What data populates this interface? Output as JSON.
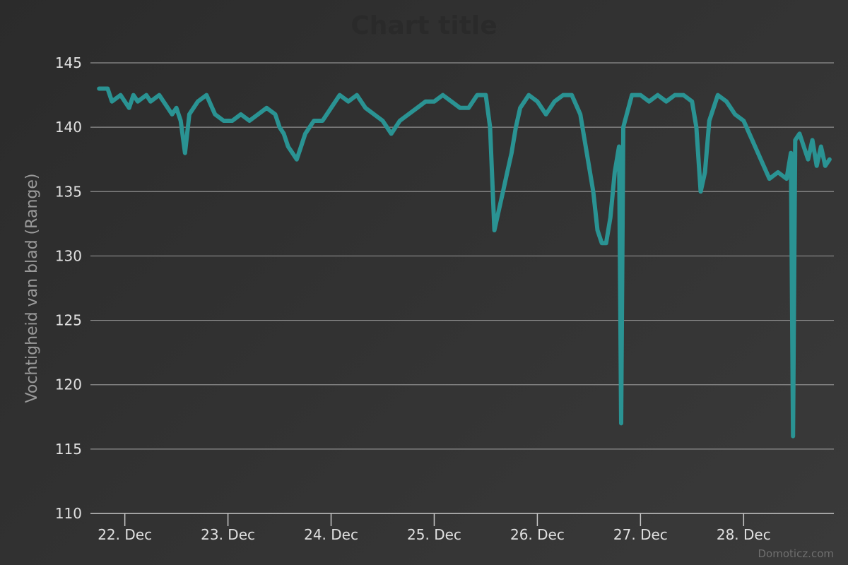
{
  "chart_data": {
    "type": "line",
    "title": "Chart title",
    "ylabel": "Vochtigheid van blad (Range)",
    "xlabel": "",
    "ylim": [
      110,
      145
    ],
    "yticks": [
      110,
      115,
      120,
      125,
      130,
      135,
      140,
      145
    ],
    "xlim": [
      "2016-12-21T16:00",
      "2016-12-28T21:00"
    ],
    "xticks": [
      {
        "date": "2016-12-22",
        "label": "22. Dec"
      },
      {
        "date": "2016-12-23",
        "label": "23. Dec"
      },
      {
        "date": "2016-12-24",
        "label": "24. Dec"
      },
      {
        "date": "2016-12-25",
        "label": "25. Dec"
      },
      {
        "date": "2016-12-26",
        "label": "26. Dec"
      },
      {
        "date": "2016-12-27",
        "label": "27. Dec"
      },
      {
        "date": "2016-12-28",
        "label": "28. Dec"
      }
    ],
    "grid": true,
    "series": [
      {
        "color": "#2a9393",
        "points": [
          [
            "2016-12-21T18:00",
            143
          ],
          [
            "2016-12-21T20:00",
            143
          ],
          [
            "2016-12-21T21:00",
            142
          ],
          [
            "2016-12-21T23:00",
            142.5
          ],
          [
            "2016-12-22T00:00",
            142
          ],
          [
            "2016-12-22T01:00",
            141.5
          ],
          [
            "2016-12-22T02:00",
            142.5
          ],
          [
            "2016-12-22T03:00",
            142
          ],
          [
            "2016-12-22T05:00",
            142.5
          ],
          [
            "2016-12-22T06:00",
            142
          ],
          [
            "2016-12-22T08:00",
            142.5
          ],
          [
            "2016-12-22T10:00",
            141.5
          ],
          [
            "2016-12-22T11:00",
            141
          ],
          [
            "2016-12-22T12:00",
            141.5
          ],
          [
            "2016-12-22T13:00",
            140.5
          ],
          [
            "2016-12-22T14:00",
            138
          ],
          [
            "2016-12-22T15:00",
            141
          ],
          [
            "2016-12-22T17:00",
            142
          ],
          [
            "2016-12-22T19:00",
            142.5
          ],
          [
            "2016-12-22T21:00",
            141
          ],
          [
            "2016-12-22T23:00",
            140.5
          ],
          [
            "2016-12-23T01:00",
            140.5
          ],
          [
            "2016-12-23T03:00",
            141
          ],
          [
            "2016-12-23T05:00",
            140.5
          ],
          [
            "2016-12-23T07:00",
            141
          ],
          [
            "2016-12-23T09:00",
            141.5
          ],
          [
            "2016-12-23T11:00",
            141
          ],
          [
            "2016-12-23T12:00",
            140
          ],
          [
            "2016-12-23T13:00",
            139.5
          ],
          [
            "2016-12-23T14:00",
            138.5
          ],
          [
            "2016-12-23T15:00",
            138
          ],
          [
            "2016-12-23T16:00",
            137.5
          ],
          [
            "2016-12-23T17:00",
            138.5
          ],
          [
            "2016-12-23T18:00",
            139.5
          ],
          [
            "2016-12-23T20:00",
            140.5
          ],
          [
            "2016-12-23T22:00",
            140.5
          ],
          [
            "2016-12-24T00:00",
            141.5
          ],
          [
            "2016-12-24T02:00",
            142.5
          ],
          [
            "2016-12-24T04:00",
            142
          ],
          [
            "2016-12-24T06:00",
            142.5
          ],
          [
            "2016-12-24T08:00",
            141.5
          ],
          [
            "2016-12-24T10:00",
            141
          ],
          [
            "2016-12-24T12:00",
            140.5
          ],
          [
            "2016-12-24T14:00",
            139.5
          ],
          [
            "2016-12-24T16:00",
            140.5
          ],
          [
            "2016-12-24T18:00",
            141
          ],
          [
            "2016-12-24T20:00",
            141.5
          ],
          [
            "2016-12-24T22:00",
            142
          ],
          [
            "2016-12-25T00:00",
            142
          ],
          [
            "2016-12-25T02:00",
            142.5
          ],
          [
            "2016-12-25T04:00",
            142
          ],
          [
            "2016-12-25T06:00",
            141.5
          ],
          [
            "2016-12-25T08:00",
            141.5
          ],
          [
            "2016-12-25T10:00",
            142.5
          ],
          [
            "2016-12-25T12:00",
            142.5
          ],
          [
            "2016-12-25T13:00",
            140
          ],
          [
            "2016-12-25T14:00",
            132
          ],
          [
            "2016-12-25T15:00",
            133.5
          ],
          [
            "2016-12-25T16:00",
            135
          ],
          [
            "2016-12-25T17:00",
            136.5
          ],
          [
            "2016-12-25T18:00",
            138
          ],
          [
            "2016-12-25T19:00",
            140
          ],
          [
            "2016-12-25T20:00",
            141.5
          ],
          [
            "2016-12-25T22:00",
            142.5
          ],
          [
            "2016-12-26T00:00",
            142
          ],
          [
            "2016-12-26T02:00",
            141
          ],
          [
            "2016-12-26T04:00",
            142
          ],
          [
            "2016-12-26T06:00",
            142.5
          ],
          [
            "2016-12-26T08:00",
            142.5
          ],
          [
            "2016-12-26T10:00",
            141
          ],
          [
            "2016-12-26T11:00",
            139
          ],
          [
            "2016-12-26T12:00",
            137
          ],
          [
            "2016-12-26T13:00",
            135
          ],
          [
            "2016-12-26T14:00",
            132
          ],
          [
            "2016-12-26T15:00",
            131
          ],
          [
            "2016-12-26T16:00",
            131
          ],
          [
            "2016-12-26T17:00",
            133
          ],
          [
            "2016-12-26T18:00",
            136.5
          ],
          [
            "2016-12-26T19:00",
            138.5
          ],
          [
            "2016-12-26T19:30",
            117
          ],
          [
            "2016-12-26T20:00",
            140
          ],
          [
            "2016-12-26T22:00",
            142.5
          ],
          [
            "2016-12-27T00:00",
            142.5
          ],
          [
            "2016-12-27T02:00",
            142
          ],
          [
            "2016-12-27T04:00",
            142.5
          ],
          [
            "2016-12-27T06:00",
            142
          ],
          [
            "2016-12-27T08:00",
            142.5
          ],
          [
            "2016-12-27T10:00",
            142.5
          ],
          [
            "2016-12-27T12:00",
            142
          ],
          [
            "2016-12-27T13:00",
            140
          ],
          [
            "2016-12-27T14:00",
            135
          ],
          [
            "2016-12-27T15:00",
            136.5
          ],
          [
            "2016-12-27T16:00",
            140.5
          ],
          [
            "2016-12-27T18:00",
            142.5
          ],
          [
            "2016-12-27T20:00",
            142
          ],
          [
            "2016-12-27T22:00",
            141
          ],
          [
            "2016-12-28T00:00",
            140.5
          ],
          [
            "2016-12-28T02:00",
            139
          ],
          [
            "2016-12-28T04:00",
            137.5
          ],
          [
            "2016-12-28T06:00",
            136
          ],
          [
            "2016-12-28T08:00",
            136.5
          ],
          [
            "2016-12-28T10:00",
            136
          ],
          [
            "2016-12-28T11:00",
            138
          ],
          [
            "2016-12-28T11:30",
            116
          ],
          [
            "2016-12-28T12:00",
            139
          ],
          [
            "2016-12-28T13:00",
            139.5
          ],
          [
            "2016-12-28T14:00",
            138.5
          ],
          [
            "2016-12-28T15:00",
            137.5
          ],
          [
            "2016-12-28T16:00",
            139
          ],
          [
            "2016-12-28T17:00",
            137
          ],
          [
            "2016-12-28T18:00",
            138.5
          ],
          [
            "2016-12-28T19:00",
            137
          ],
          [
            "2016-12-28T20:00",
            137.5
          ]
        ]
      }
    ]
  },
  "credit": "Domoticz.com"
}
